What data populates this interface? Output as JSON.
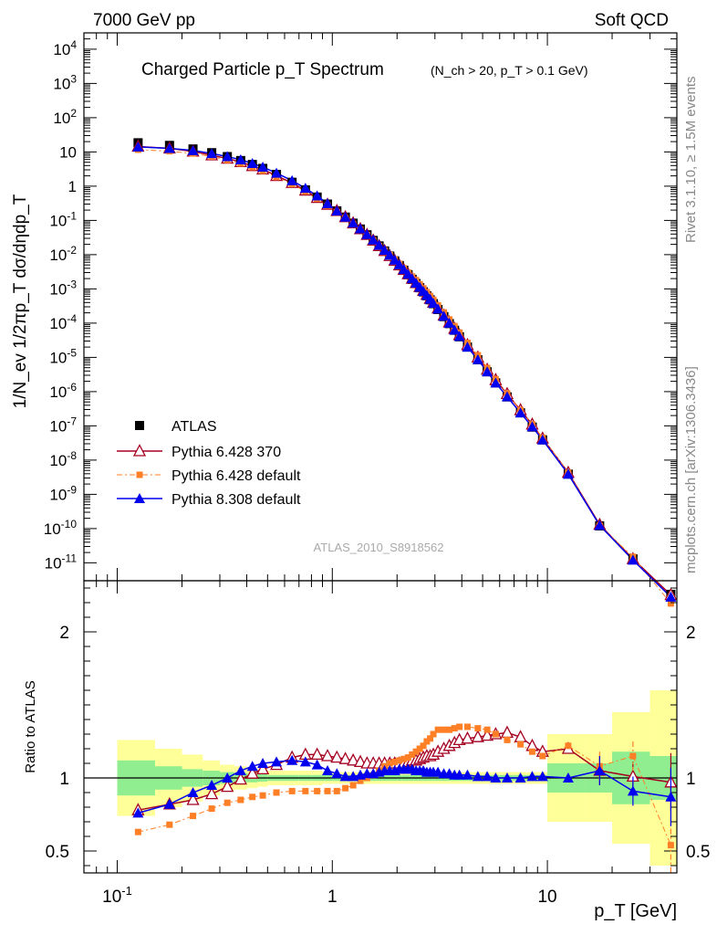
{
  "header": {
    "left": "7000 GeV pp",
    "right": "Soft QCD"
  },
  "side": {
    "rivet": "Rivet 3.1.10, ≥ 1.5M events",
    "mcplots": "mcplots.cern.ch [arXiv:1306.3436]"
  },
  "chart_data": [
    {
      "type": "scatter",
      "title": "Charged Particle p_T Spectrum",
      "subtitle": "(N_ch > 20, p_T > 0.1 GeV)",
      "ylabel": "1/N_ev 1/2πp_T dσ/dηdp_T",
      "xlabel": "p_T [GeV]",
      "xscale": "log",
      "yscale": "log",
      "xlim": [
        0.07,
        40
      ],
      "ylim": [
        3e-12,
        30000.0
      ],
      "analysis_label": "ATLAS_2010_S8918562",
      "legend_position": "bottom-left",
      "x": [
        0.125,
        0.175,
        0.225,
        0.275,
        0.325,
        0.375,
        0.425,
        0.475,
        0.55,
        0.65,
        0.75,
        0.85,
        0.95,
        1.05,
        1.15,
        1.25,
        1.35,
        1.45,
        1.55,
        1.65,
        1.75,
        1.85,
        1.95,
        2.05,
        2.15,
        2.25,
        2.35,
        2.45,
        2.55,
        2.65,
        2.75,
        2.85,
        2.95,
        3.1,
        3.3,
        3.5,
        3.7,
        3.9,
        4.25,
        4.75,
        5.25,
        5.75,
        6.5,
        7.5,
        8.5,
        9.5,
        12.5,
        17.5,
        25,
        37.5
      ],
      "series": [
        {
          "name": "ATLAS",
          "color": "#000000",
          "marker": "square",
          "values": [
            18.5,
            15.5,
            12.2,
            9.5,
            7.3,
            5.6,
            4.3,
            3.3,
            2.2,
            1.3,
            0.78,
            0.48,
            0.3,
            0.19,
            0.125,
            0.083,
            0.056,
            0.038,
            0.026,
            0.018,
            0.0128,
            0.0091,
            0.0066,
            0.0048,
            0.0035,
            0.0026,
            0.0019,
            0.00143,
            0.00108,
            0.00082,
            0.00063,
            0.00048,
            0.00037,
            0.00025,
            0.000155,
            9.7e-05,
            6.2e-05,
            4e-05,
            2e-05,
            8.5e-06,
            3.8e-06,
            1.8e-06,
            7e-07,
            2.4e-07,
            9.2e-08,
            3.9e-08,
            3.9e-09,
            1.2e-10,
            1.3e-11,
            1.2e-12
          ]
        },
        {
          "name": "Pythia 6.428 370",
          "color": "#a50021",
          "marker": "triangle-open",
          "values": [
            14.4,
            12.7,
            10.3,
            8.0,
            6.4,
            5.1,
            3.9,
            3.1,
            2.0,
            1.25,
            0.75,
            0.46,
            0.29,
            0.19,
            0.125,
            0.083,
            0.056,
            0.038,
            0.026,
            0.018,
            0.0129,
            0.0092,
            0.0067,
            0.0049,
            0.0036,
            0.0027,
            0.002,
            0.0015,
            0.00114,
            0.00088,
            0.00068,
            0.00052,
            0.0004,
            0.00027,
            0.000168,
            0.000107,
            6.9e-05,
            4.5e-05,
            2.3e-05,
            1e-05,
            4.4e-06,
            2.2e-06,
            8.6e-07,
            2.9e-07,
            1.1e-07,
            4.3e-08,
            4.3e-09,
            1.3e-10,
            1.3e-11,
            1.15e-12
          ]
        },
        {
          "name": "Pythia 6.428 default",
          "color": "#ff7f27",
          "marker": "square-small",
          "values": [
            11.6,
            10.5,
            9.0,
            7.3,
            5.8,
            4.6,
            3.6,
            2.8,
            1.85,
            1.15,
            0.7,
            0.43,
            0.27,
            0.17,
            0.115,
            0.077,
            0.053,
            0.037,
            0.026,
            0.018,
            0.0133,
            0.0097,
            0.0072,
            0.0054,
            0.004,
            0.003,
            0.0023,
            0.0018,
            0.00136,
            0.00104,
            0.0008,
            0.00062,
            0.00048,
            0.00033,
            0.000205,
            0.000128,
            8.2e-05,
            5.3e-05,
            2.65e-05,
            1.15e-05,
            4.9e-06,
            2.3e-06,
            8.8e-07,
            2.9e-07,
            1.1e-07,
            4.5e-08,
            4.3e-09,
            1.2e-10,
            1.5e-11,
            6.5e-13
          ]
        },
        {
          "name": "Pythia 8.308 default",
          "color": "#0000ee",
          "marker": "triangle",
          "values": [
            14.0,
            12.7,
            11.0,
            9.0,
            7.3,
            5.9,
            4.6,
            3.6,
            2.4,
            1.45,
            0.87,
            0.52,
            0.31,
            0.19,
            0.125,
            0.084,
            0.057,
            0.039,
            0.027,
            0.019,
            0.0135,
            0.0097,
            0.007,
            0.0051,
            0.0037,
            0.0027,
            0.002,
            0.00148,
            0.00112,
            0.00085,
            0.00065,
            0.0005,
            0.00038,
            0.00026,
            0.00016,
            0.0001,
            6.3e-05,
            4.1e-05,
            2e-05,
            8.6e-06,
            3.8e-06,
            1.8e-06,
            7.1e-07,
            2.4e-07,
            9.4e-08,
            3.9e-08,
            3.9e-09,
            1.24e-10,
            1.2e-11,
            1e-12
          ]
        }
      ]
    },
    {
      "type": "scatter",
      "ylabel": "Ratio to ATLAS",
      "xlabel": "p_T [GeV]",
      "xscale": "log",
      "xlim": [
        0.07,
        40
      ],
      "ylim": [
        0.35,
        2.35
      ],
      "yticks": [
        "0.5",
        "1",
        "2"
      ],
      "xticks": [
        "10^-1",
        "1",
        "10"
      ],
      "bin_edges": [
        0.1,
        0.15,
        0.2,
        0.25,
        0.3,
        0.35,
        0.4,
        0.45,
        0.5,
        0.6,
        0.7,
        0.8,
        0.9,
        1.0,
        1.1,
        1.2,
        1.3,
        1.4,
        1.5,
        1.6,
        1.7,
        1.8,
        1.9,
        2.0,
        2.1,
        2.2,
        2.3,
        2.4,
        2.5,
        2.6,
        2.7,
        2.8,
        2.9,
        3.0,
        3.2,
        3.4,
        3.6,
        3.8,
        4.0,
        4.5,
        5.0,
        5.5,
        6.0,
        7.0,
        8.0,
        9.0,
        10.0,
        15.0,
        20.0,
        30.0,
        45.0
      ],
      "band_stat": [
        0.12,
        0.08,
        0.06,
        0.05,
        0.04,
        0.035,
        0.03,
        0.025,
        0.02,
        0.02,
        0.02,
        0.02,
        0.02,
        0.02,
        0.02,
        0.02,
        0.02,
        0.02,
        0.02,
        0.02,
        0.02,
        0.02,
        0.02,
        0.02,
        0.02,
        0.02,
        0.02,
        0.02,
        0.02,
        0.02,
        0.02,
        0.02,
        0.02,
        0.02,
        0.02,
        0.02,
        0.02,
        0.02,
        0.02,
        0.02,
        0.02,
        0.02,
        0.02,
        0.02,
        0.02,
        0.02,
        0.1,
        0.1,
        0.18,
        0.15
      ],
      "band_total": [
        0.26,
        0.2,
        0.16,
        0.12,
        0.09,
        0.08,
        0.07,
        0.06,
        0.05,
        0.05,
        0.05,
        0.05,
        0.04,
        0.04,
        0.04,
        0.04,
        0.04,
        0.04,
        0.04,
        0.04,
        0.04,
        0.04,
        0.04,
        0.04,
        0.04,
        0.04,
        0.04,
        0.04,
        0.04,
        0.04,
        0.04,
        0.04,
        0.04,
        0.04,
        0.04,
        0.04,
        0.04,
        0.04,
        0.04,
        0.04,
        0.04,
        0.04,
        0.04,
        0.04,
        0.04,
        0.04,
        0.3,
        0.3,
        0.45,
        0.6
      ],
      "series": [
        {
          "name": "Pythia 6.428 370",
          "color": "#a50021",
          "marker": "triangle-open",
          "values": [
            0.78,
            0.82,
            0.85,
            0.89,
            0.94,
            0.99,
            1.03,
            1.06,
            1.09,
            1.14,
            1.16,
            1.16,
            1.15,
            1.14,
            1.13,
            1.12,
            1.11,
            1.1,
            1.1,
            1.1,
            1.1,
            1.1,
            1.1,
            1.1,
            1.1,
            1.11,
            1.12,
            1.12,
            1.13,
            1.14,
            1.15,
            1.15,
            1.16,
            1.18,
            1.2,
            1.22,
            1.24,
            1.26,
            1.27,
            1.28,
            1.29,
            1.3,
            1.31,
            1.28,
            1.22,
            1.18,
            1.2,
            1.05,
            1.01,
            0.97
          ]
        },
        {
          "name": "Pythia 6.428 default",
          "color": "#ff7f27",
          "marker": "square-small",
          "values": [
            0.63,
            0.68,
            0.74,
            0.79,
            0.83,
            0.85,
            0.87,
            0.88,
            0.9,
            0.91,
            0.91,
            0.91,
            0.91,
            0.91,
            0.93,
            0.95,
            0.98,
            1.0,
            1.02,
            1.05,
            1.08,
            1.1,
            1.11,
            1.12,
            1.13,
            1.14,
            1.16,
            1.18,
            1.2,
            1.22,
            1.25,
            1.27,
            1.3,
            1.33,
            1.33,
            1.33,
            1.34,
            1.35,
            1.35,
            1.34,
            1.33,
            1.3,
            1.26,
            1.23,
            1.18,
            1.15,
            1.22,
            1.08,
            1.15,
            0.54
          ]
        },
        {
          "name": "Pythia 8.308 default",
          "color": "#0000ee",
          "marker": "triangle",
          "values": [
            0.76,
            0.82,
            0.9,
            0.95,
            1.0,
            1.05,
            1.08,
            1.1,
            1.11,
            1.12,
            1.11,
            1.09,
            1.05,
            1.03,
            1.01,
            1.01,
            1.02,
            1.03,
            1.03,
            1.04,
            1.05,
            1.05,
            1.05,
            1.06,
            1.06,
            1.06,
            1.06,
            1.05,
            1.05,
            1.05,
            1.04,
            1.04,
            1.04,
            1.04,
            1.03,
            1.03,
            1.02,
            1.02,
            1.02,
            1.01,
            1.01,
            1.0,
            1.0,
            1.0,
            1.01,
            1.01,
            1.0,
            1.05,
            0.91,
            0.87
          ]
        }
      ]
    }
  ]
}
